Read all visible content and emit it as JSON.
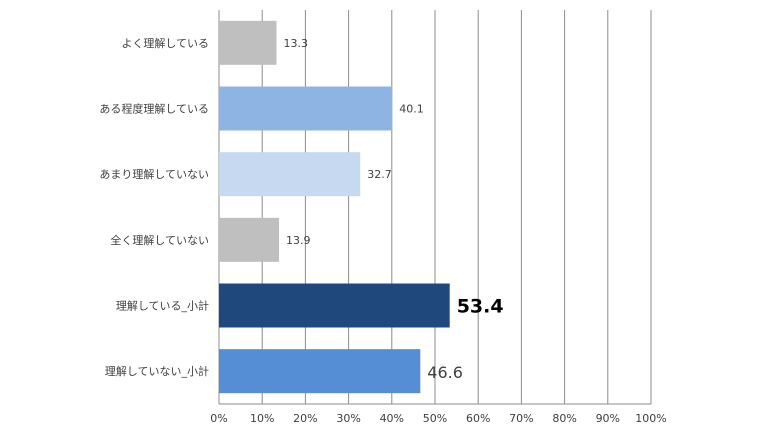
{
  "chart_data": {
    "type": "bar",
    "orientation": "horizontal",
    "categories": [
      "よく理解している",
      "ある程度理解している",
      "あまり理解していない",
      "全く理解していない",
      "理解している_小計",
      "理解していない_小計"
    ],
    "values": [
      13.3,
      40.1,
      32.7,
      13.9,
      53.4,
      46.6
    ],
    "value_labels": [
      "13.3",
      "40.1",
      "32.7",
      "13.9",
      "53.4",
      "46.6"
    ],
    "bar_colors": [
      "#bfbfbf",
      "#8eb4e3",
      "#c6d9f1",
      "#bfbfbf",
      "#1f497d",
      "#558ed5"
    ],
    "label_emphasis": [
      "normal",
      "normal",
      "normal",
      "normal",
      "bold-large",
      "large"
    ],
    "x_ticks": [
      "0%",
      "10%",
      "20%",
      "30%",
      "40%",
      "50%",
      "60%",
      "70%",
      "80%",
      "90%",
      "100%"
    ],
    "xlim": [
      0,
      100
    ],
    "grid": "vertical",
    "legend": "none",
    "title": "",
    "xlabel": "",
    "ylabel": ""
  }
}
